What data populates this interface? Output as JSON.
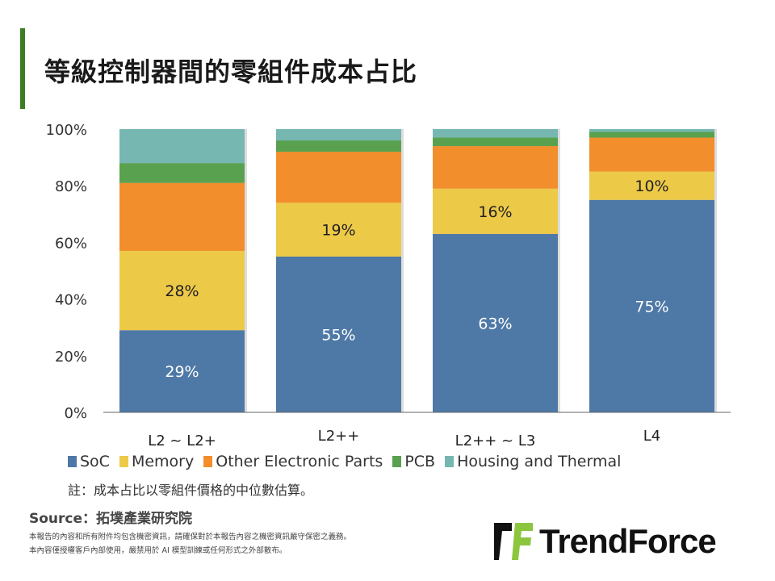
{
  "title": "等級控制器間的零組件成本占比",
  "chart_data": {
    "type": "bar",
    "stacked": true,
    "categories": [
      "L2 ~ L2+",
      "L2++",
      "L2++ ~ L3",
      "L4"
    ],
    "series": [
      {
        "name": "SoC",
        "color": "#4e79a7",
        "values": [
          29,
          55,
          63,
          75
        ],
        "labels": [
          "29%",
          "55%",
          "63%",
          "75%"
        ]
      },
      {
        "name": "Memory",
        "color": "#edc948",
        "values": [
          28,
          19,
          16,
          10
        ],
        "labels": [
          "28%",
          "19%",
          "16%",
          "10%"
        ]
      },
      {
        "name": "Other Electronic Parts",
        "color": "#f28e2b",
        "values": [
          24,
          18,
          15,
          12
        ]
      },
      {
        "name": "PCB",
        "color": "#59a14f",
        "values": [
          7,
          4,
          3,
          2
        ]
      },
      {
        "name": "Housing and Thermal",
        "color": "#76b7b2",
        "values": [
          12,
          4,
          3,
          1
        ]
      }
    ],
    "yticks": [
      "0%",
      "20%",
      "40%",
      "60%",
      "80%",
      "100%"
    ],
    "ylim": [
      0,
      100
    ],
    "grid": false,
    "legend": "bottom"
  },
  "note": "註：成本占比以零組件價格的中位數估算。",
  "source": "Source：拓墣產業研究院",
  "disclaimer": [
    "本報告的內容和所有附件均包含機密資訊，請確保對於本報告內容之機密資訊嚴守保密之義務。",
    "本內容僅授權客戶內部使用，嚴禁用於 AI 模型訓練或任何形式之外部散布。"
  ],
  "logo": {
    "text": "TrendForce"
  }
}
